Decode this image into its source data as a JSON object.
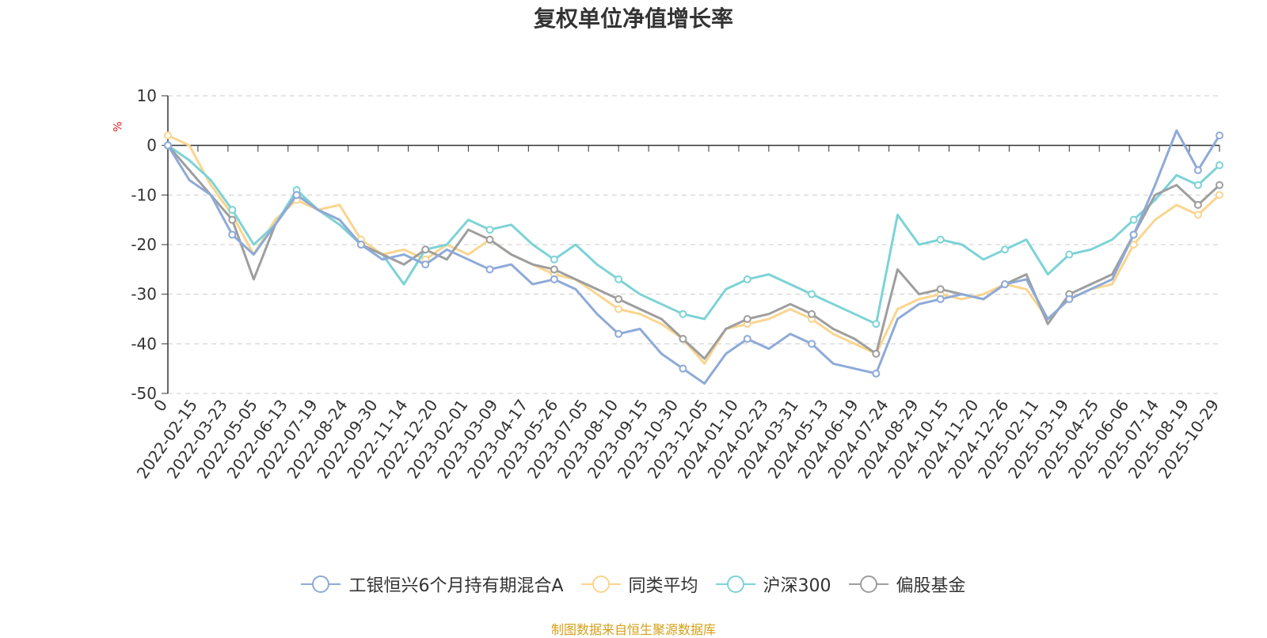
{
  "chart_data": {
    "type": "line",
    "title": "复权单位净值增长率",
    "ylabel": "%",
    "ylim": [
      -50,
      10
    ],
    "yticks": [
      10,
      0,
      -10,
      -20,
      -30,
      -40,
      -50
    ],
    "x_tick_labels": [
      "0",
      "2022-02-15",
      "2022-03-23",
      "2022-05-05",
      "2022-06-13",
      "2022-07-19",
      "2022-08-24",
      "2022-09-30",
      "2022-11-14",
      "2022-12-20",
      "2023-02-01",
      "2023-03-09",
      "2023-04-17",
      "2023-05-26",
      "2023-07-05",
      "2023-08-10",
      "2023-09-15",
      "2023-10-30",
      "2023-12-05",
      "2024-01-10",
      "2024-02-23",
      "2024-03-31",
      "2024-05-13",
      "2024-06-19",
      "2024-07-24",
      "2024-08-29",
      "2024-10-15",
      "2024-11-20",
      "2024-12-26",
      "2025-02-11",
      "2025-03-19",
      "2025-04-25",
      "2025-06-06",
      "2025-07-14",
      "2025-08-19",
      "2025-10-29"
    ],
    "series": [
      {
        "name": "工银恒兴6个月持有期混合A",
        "color": "#8eaad8",
        "values": [
          0,
          -7,
          -10,
          -18,
          -22,
          -16,
          -10,
          -13,
          -15,
          -20,
          -23,
          -22,
          -24,
          -21,
          -23,
          -25,
          -24,
          -28,
          -27,
          -29,
          -34,
          -38,
          -37,
          -42,
          -45,
          -48,
          -42,
          -39,
          -41,
          -38,
          -40,
          -44,
          -45,
          -46,
          -35,
          -32,
          -31,
          -30,
          -31,
          -28,
          -27,
          -35,
          -31,
          -29,
          -27,
          -18,
          -8,
          3,
          -5,
          2
        ]
      },
      {
        "name": "同类平均",
        "color": "#f9d58e",
        "values": [
          2,
          0,
          -8,
          -14,
          -22,
          -15,
          -11,
          -13,
          -12,
          -19,
          -22,
          -21,
          -23,
          -20,
          -22,
          -19,
          -22,
          -24,
          -26,
          -27,
          -30,
          -33,
          -34,
          -36,
          -39,
          -44,
          -37,
          -36,
          -35,
          -33,
          -35,
          -38,
          -40,
          -42,
          -33,
          -31,
          -30,
          -31,
          -30,
          -28,
          -29,
          -35,
          -31,
          -29,
          -28,
          -20,
          -15,
          -12,
          -14,
          -10
        ]
      },
      {
        "name": "沪深300",
        "color": "#7dd3d6",
        "values": [
          0,
          -3,
          -7,
          -13,
          -20,
          -16,
          -9,
          -13,
          -16,
          -20,
          -22,
          -28,
          -21,
          -20,
          -15,
          -17,
          -16,
          -20,
          -23,
          -20,
          -24,
          -27,
          -30,
          -32,
          -34,
          -35,
          -29,
          -27,
          -26,
          -28,
          -30,
          -32,
          -34,
          -36,
          -14,
          -20,
          -19,
          -20,
          -23,
          -21,
          -19,
          -26,
          -22,
          -21,
          -19,
          -15,
          -11,
          -6,
          -8,
          -4
        ]
      },
      {
        "name": "偏股基金",
        "color": "#9e9e9e",
        "values": [
          0,
          -5,
          -10,
          -15,
          -27,
          -16,
          -10,
          -13,
          -15,
          -20,
          -22,
          -24,
          -21,
          -23,
          -17,
          -19,
          -22,
          -24,
          -25,
          -27,
          -29,
          -31,
          -33,
          -35,
          -39,
          -43,
          -37,
          -35,
          -34,
          -32,
          -34,
          -37,
          -39,
          -42,
          -25,
          -30,
          -29,
          -30,
          -31,
          -28,
          -26,
          -36,
          -30,
          -28,
          -26,
          -18,
          -10,
          -8,
          -12,
          -8
        ]
      }
    ]
  },
  "legend": {
    "items": [
      {
        "label": "工银恒兴6个月持有期混合A",
        "color": "#8eaad8"
      },
      {
        "label": "同类平均",
        "color": "#f9d58e"
      },
      {
        "label": "沪深300",
        "color": "#7dd3d6"
      },
      {
        "label": "偏股基金",
        "color": "#9e9e9e"
      }
    ]
  },
  "source_text": "制图数据来自恒生聚源数据库"
}
